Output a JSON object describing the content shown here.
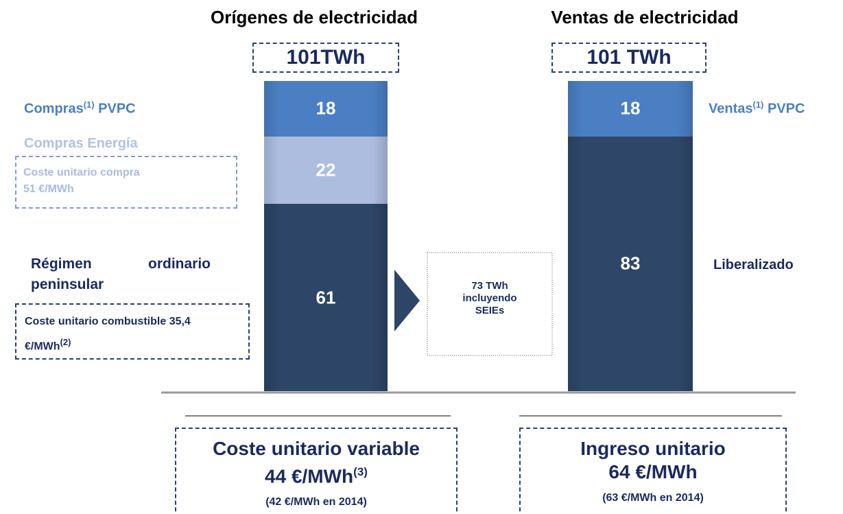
{
  "chart_data": [
    {
      "type": "bar",
      "stacked": true,
      "title": "Orígenes de electricidad",
      "total_label": "101TWh",
      "series": [
        {
          "name": "Compras",
          "name_sup": "(1)",
          "name_end": "PVPC",
          "color": "#4a7fc4",
          "values": [
            18
          ]
        },
        {
          "name": "Compras Energía",
          "note": "Coste unitario compra",
          "note_end": "51 €/MWh",
          "color": "#adbde0",
          "values": [
            22
          ]
        },
        {
          "name": "Régimen ordinario peninsular",
          "note": "Coste unitario combustible 35,4 €/MWh",
          "note_sup": "(2)",
          "color": "#2d4566",
          "values": [
            61
          ]
        }
      ],
      "footer": {
        "title": "Coste unitario variable",
        "value": "44 €/MWh",
        "value_sup": "(3)",
        "note": "(42 €/MWh en 2014)"
      }
    },
    {
      "type": "bar",
      "stacked": true,
      "title": "Ventas de electricidad",
      "total_label": "101 TWh",
      "series": [
        {
          "name": "Ventas",
          "name_sup": "(1)",
          "name_end": "PVPC",
          "color": "#4a7fc4",
          "values": [
            18
          ]
        },
        {
          "name": "Liberalizado",
          "color": "#2e4769",
          "values": [
            83
          ]
        }
      ],
      "footer": {
        "title": "Ingreso unitario",
        "value": "64 €/MWh",
        "note": "(63 €/MWh en 2014)"
      }
    }
  ],
  "annotation": "73 TWh incluyendo SEIEs"
}
